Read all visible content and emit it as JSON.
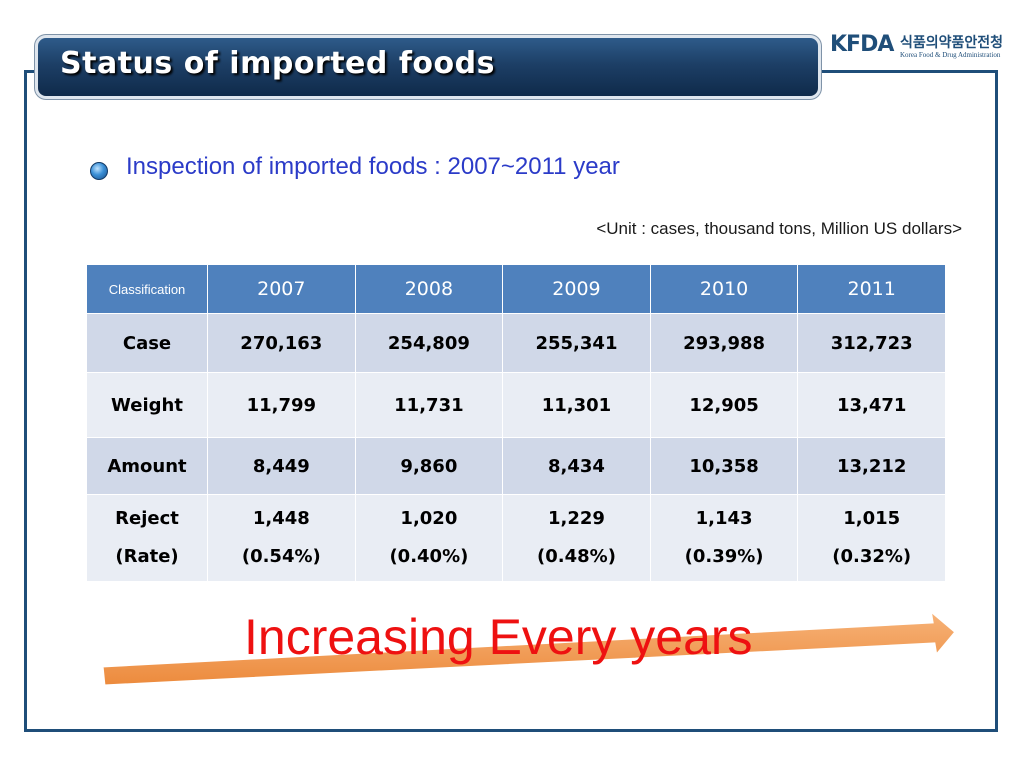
{
  "header": {
    "title": "Status of imported foods",
    "logo_mark": "KFDA",
    "logo_korean": "식품의약품안전청",
    "logo_english": "Korea Food & Drug Administration"
  },
  "bullet": {
    "text": "Inspection of imported foods : 2007~2011 year"
  },
  "unit_note": "<Unit : cases, thousand tons, Million US dollars>",
  "table": {
    "headers": [
      "Classification",
      "2007",
      "2008",
      "2009",
      "2010",
      "2011"
    ],
    "rows": [
      {
        "label": "Case",
        "values": [
          "270,163",
          "254,809",
          "255,341",
          "293,988",
          "312,723"
        ]
      },
      {
        "label": "Weight",
        "values": [
          "11,799",
          "11,731",
          "11,301",
          "12,905",
          "13,471"
        ]
      },
      {
        "label": "Amount",
        "values": [
          "8,449",
          "9,860",
          "8,434",
          "10,358",
          "13,212"
        ]
      },
      {
        "label_line1": "Reject",
        "label_line2": "(Rate)",
        "values": [
          "1,448",
          "1,020",
          "1,229",
          "1,143",
          "1,015"
        ],
        "rates": [
          "(0.54%)",
          "(0.40%)",
          "(0.48%)",
          "(0.39%)",
          "(0.32%)"
        ]
      }
    ]
  },
  "callout": {
    "text": "Increasing Every years"
  },
  "colors": {
    "header_blue": "#1f4e79",
    "table_header": "#4f81bd",
    "row_dark": "#d0d8e8",
    "row_light": "#e9edf4",
    "arrow_orange": "#f4a460",
    "callout_red": "#ee1111",
    "bullet_text": "#2b3bc8"
  }
}
